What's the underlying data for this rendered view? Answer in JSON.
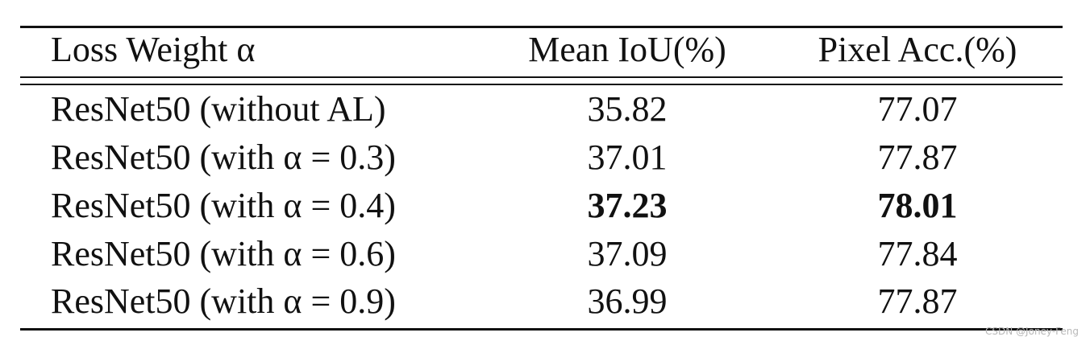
{
  "table": {
    "header": [
      "Loss Weight α",
      "Mean IoU(%)",
      "Pixel Acc.(%)"
    ],
    "rows": [
      [
        "ResNet50 (without AL)",
        "35.82",
        "77.07"
      ],
      [
        "ResNet50 (with α = 0.3)",
        "37.01",
        "77.87"
      ],
      [
        "ResNet50 (with α = 0.4)",
        "37.23",
        "78.01"
      ],
      [
        "ResNet50 (with α = 0.6)",
        "37.09",
        "77.84"
      ],
      [
        "ResNet50 (with α = 0.9)",
        "36.99",
        "77.87"
      ]
    ]
  },
  "watermark": "CSDN @Joney-Feng"
}
